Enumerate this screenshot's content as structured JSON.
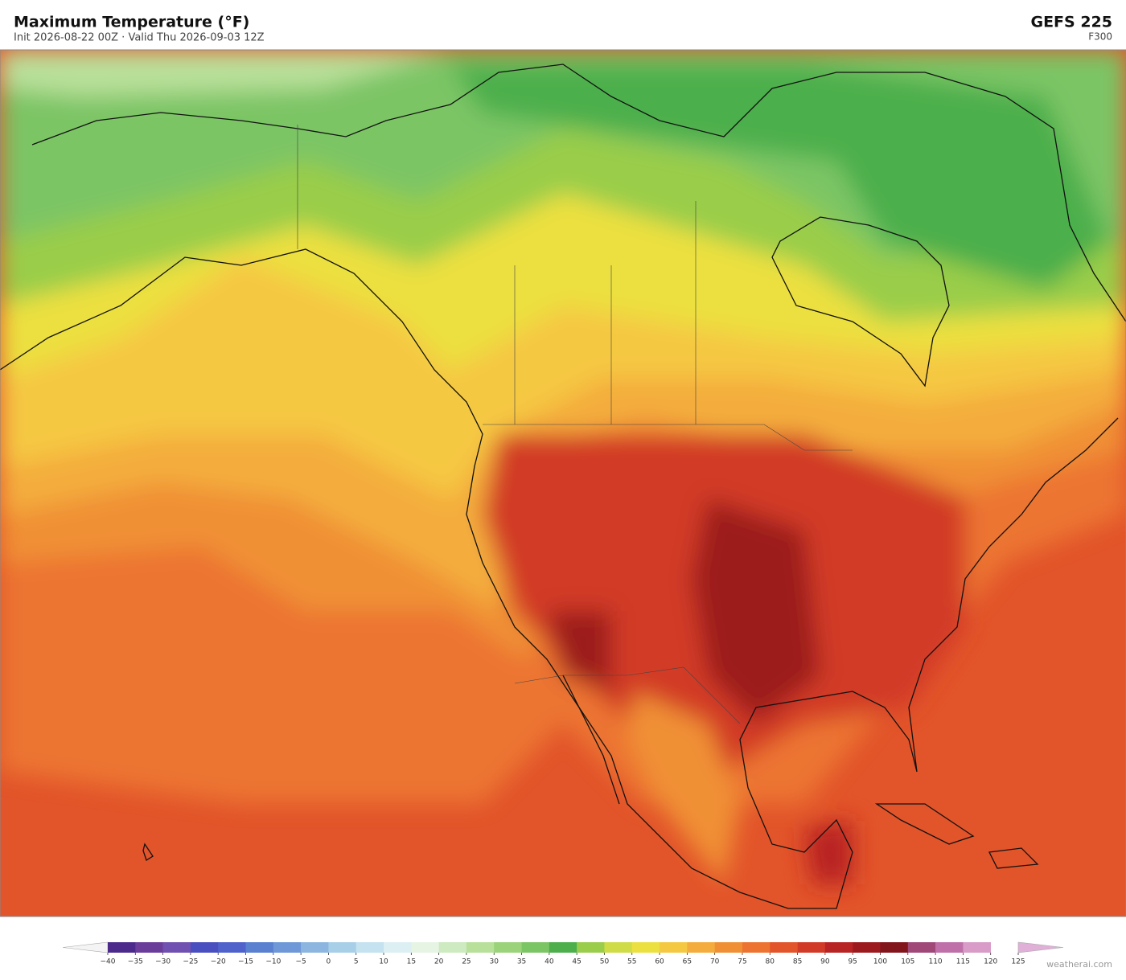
{
  "header": {
    "title": "Maximum Temperature  (°F)",
    "subtitle": "Init 2026-08-22 00Z   ·   Valid Thu 2026-09-03 12Z",
    "model": "GEFS  225",
    "forecast_hour": "F300"
  },
  "colorbar": {
    "ticks": [
      {
        "value": -40,
        "label": "−40"
      },
      {
        "value": -35,
        "label": "−35"
      },
      {
        "value": -30,
        "label": "−30"
      },
      {
        "value": -25,
        "label": "−25"
      },
      {
        "value": -20,
        "label": "−20"
      },
      {
        "value": -15,
        "label": "−15"
      },
      {
        "value": -10,
        "label": "−10"
      },
      {
        "value": -5,
        "label": "−5"
      },
      0,
      5,
      10,
      15,
      20,
      25,
      30,
      35,
      40,
      45,
      50,
      55,
      60,
      65,
      70,
      75,
      80,
      85,
      90,
      95,
      100,
      105,
      110,
      115,
      120,
      125
    ],
    "colors": [
      "#4b2a8c",
      "#6a3d9a",
      "#7050b0",
      "#4a4fc0",
      "#4f62cc",
      "#5a80d0",
      "#6f98d8",
      "#8cb6e0",
      "#a8cfe8",
      "#c4e2ef",
      "#dceff3",
      "#e6f4e4",
      "#cdeac0",
      "#b9e09a",
      "#9bd37a",
      "#7cc565",
      "#4caf4c",
      "#9acd4a",
      "#cfdc45",
      "#ece040",
      "#f5c842",
      "#f4ad3c",
      "#f09035",
      "#ec7430",
      "#e2542a",
      "#d23a28",
      "#b82424",
      "#9c1a1e",
      "#82141c",
      "#a04878",
      "#c070a8",
      "#d99cc8"
    ],
    "under_color": "#f4f4f4",
    "over_color": "#e0b0d8"
  },
  "credit": "weatherai.com"
}
